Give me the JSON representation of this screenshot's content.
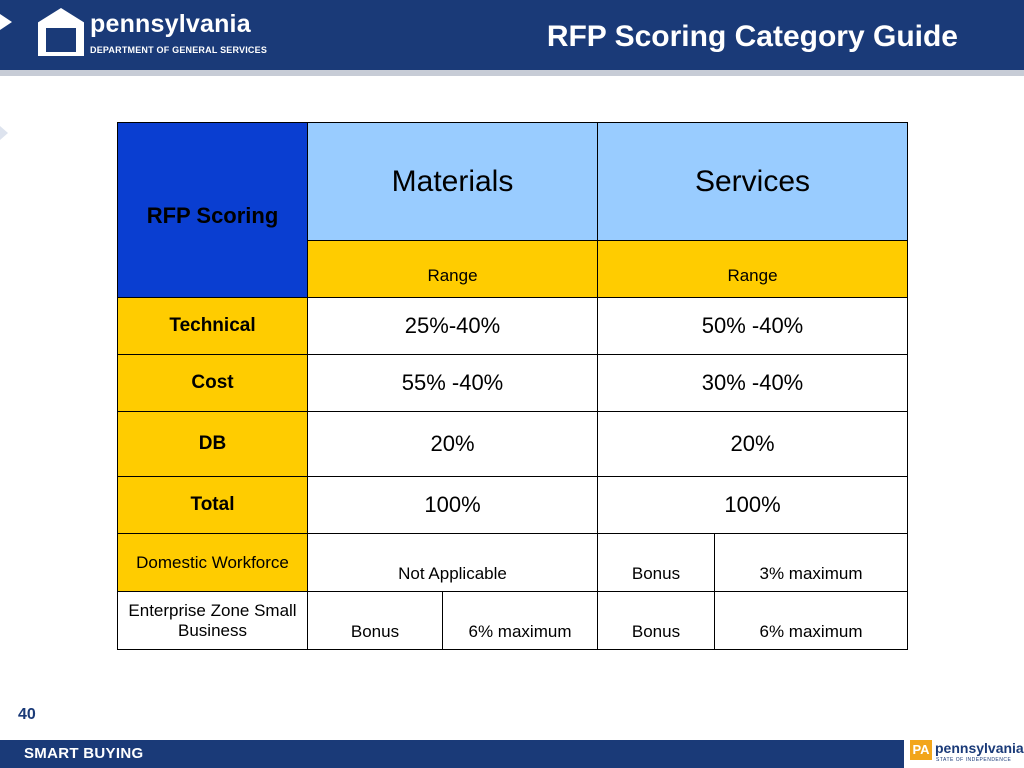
{
  "header": {
    "logo_name": "pennsylvania",
    "logo_sub": "DEPARTMENT OF GENERAL SERVICES",
    "title": "RFP Scoring Category Guide"
  },
  "table": {
    "corner_label": "RFP Scoring",
    "col_materials": "Materials",
    "col_services": "Services",
    "range_label_materials": "Range",
    "range_label_services": "Range",
    "rows": [
      {
        "label": "Technical",
        "materials": "25%-40%",
        "services": "50% -40%"
      },
      {
        "label": "Cost",
        "materials": "55% -40%",
        "services": "30% -40%"
      },
      {
        "label": "DB",
        "materials": "20%",
        "services": "20%"
      },
      {
        "label": "Total",
        "materials": "100%",
        "services": "100%"
      }
    ],
    "domestic": {
      "label": "Domestic Workforce",
      "materials": "Not Applicable",
      "services_type": "Bonus",
      "services_value": "3% maximum"
    },
    "enterprise": {
      "label": "Enterprise Zone Small Business",
      "materials_type": "Bonus",
      "materials_value": "6% maximum",
      "services_type": "Bonus",
      "services_value": "6% maximum"
    }
  },
  "page_number": "40",
  "footer": {
    "left_text": "SMART BUYING",
    "logo_badge": "PA",
    "logo_name": "pennsylvania",
    "logo_tag": "STATE OF INDEPENDENCE"
  },
  "colors": {
    "header_navy": "#1a3a78",
    "corner_blue": "#0a3ed1",
    "column_head_blue": "#99ccff",
    "row_yellow": "#ffcc00"
  }
}
